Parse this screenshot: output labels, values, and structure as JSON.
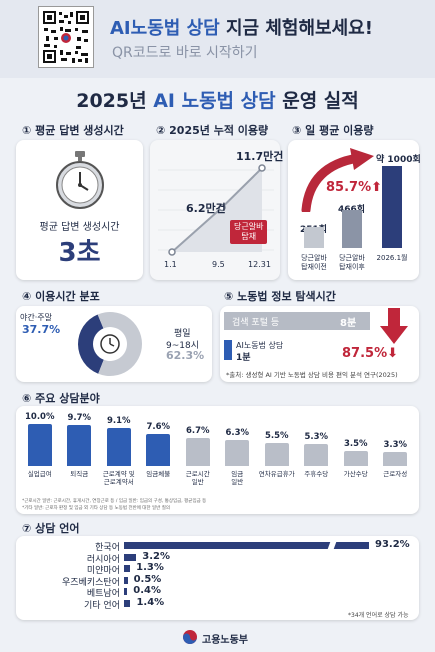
{
  "header": {
    "title_blue": "AI노동법 상담",
    "title_rest": " 지금 체험해보세요!",
    "subtitle": "QR코드로 바로 시작하기"
  },
  "main_title": {
    "year": "2025년 ",
    "ai": "AI 노동법 상담",
    "rest": " 운영 실적"
  },
  "sections": {
    "s1": "① 평균 답변 생성시간",
    "s2": "② 2025년 누적 이용량",
    "s3": "③ 일 평균 이용량",
    "s4": "④ 이용시간 분포",
    "s5": "⑤ 노동법 정보 탐색시간",
    "s6": "⑥ 주요 상담분야",
    "s7": "⑦ 상담 언어"
  },
  "s1": {
    "label": "평균 답변 생성시간",
    "value": "3초"
  },
  "s2": {
    "points": [
      {
        "x": "1.1",
        "v": 0
      },
      {
        "x": "9.5",
        "v": 6.2
      },
      {
        "x": "12.31",
        "v": 11.7
      }
    ],
    "label_mid": "6.2만건",
    "label_end": "11.7만건",
    "tag": "당근알바\n탑재",
    "xticks": [
      "1.1",
      "9.5",
      "12.31"
    ]
  },
  "s3": {
    "bars": [
      {
        "value": "251회",
        "label": "당근알바\n탑재이전",
        "v": 251
      },
      {
        "value": "466회",
        "label": "당근알바\n탑재이후",
        "v": 466
      },
      {
        "value": "약 1000회",
        "label": "2026.1월",
        "v": 1000
      }
    ],
    "growth": "85.7%"
  },
  "s4": {
    "weekend_label": "야간·주말",
    "weekend_pct": "37.7%",
    "weekday_label1": "평일",
    "weekday_label2": "9~18시",
    "weekday_pct": "62.3%",
    "weekend_frac": 0.377
  },
  "s5": {
    "portal_label": "검색 포털 등",
    "portal_value": "8분",
    "ai_label": "AI노동법 상담",
    "ai_value": "1분",
    "reduction": "87.5%",
    "source": "*출처: 생성형 AI 기반 노동법 상담 비용 편익 분석 연구(2025)"
  },
  "s6": {
    "bars": [
      {
        "pct": "10.0%",
        "label": "실업급여",
        "v": 10.0
      },
      {
        "pct": "9.7%",
        "label": "퇴직금",
        "v": 9.7
      },
      {
        "pct": "9.1%",
        "label": "근로계약 및\n근로계약서",
        "v": 9.1
      },
      {
        "pct": "7.6%",
        "label": "임금체불",
        "v": 7.6
      },
      {
        "pct": "6.7%",
        "label": "근로시간\n일반",
        "v": 6.7
      },
      {
        "pct": "6.3%",
        "label": "임금\n일반",
        "v": 6.3
      },
      {
        "pct": "5.5%",
        "label": "연차유급휴가",
        "v": 5.5
      },
      {
        "pct": "5.3%",
        "label": "주휴수당",
        "v": 5.3
      },
      {
        "pct": "3.5%",
        "label": "가산수당",
        "v": 3.5
      },
      {
        "pct": "3.3%",
        "label": "근로자성",
        "v": 3.3
      }
    ],
    "note1": "*근로시간 일반: 근로시간, 휴게시간, 연장근로 등 / 임금 일반: 임금의 구성, 통상임금, 평균임금 등",
    "note2": "*기타 일반: 근로자 판정 및 임금 외 기타 상담 등 노동법 전반에 대한 일반 질의"
  },
  "s7": {
    "languages": [
      {
        "name": "한국어",
        "pct": "93.2%",
        "v": 93.2
      },
      {
        "name": "러시아어",
        "pct": "3.2%",
        "v": 3.2
      },
      {
        "name": "미얀마어",
        "pct": "1.3%",
        "v": 1.3
      },
      {
        "name": "우즈베키스탄어",
        "pct": "0.5%",
        "v": 0.5
      },
      {
        "name": "베트남어",
        "pct": "0.4%",
        "v": 0.4
      },
      {
        "name": "기타 언어",
        "pct": "1.4%",
        "v": 1.4
      }
    ],
    "note": "*34개 언어로 상담 가능"
  },
  "footer": {
    "ministry": "고용노동부"
  },
  "colors": {
    "navy": "#2c3e7a",
    "blue": "#2e5db3",
    "red": "#c0263a",
    "gray": "#b8bdc7"
  }
}
